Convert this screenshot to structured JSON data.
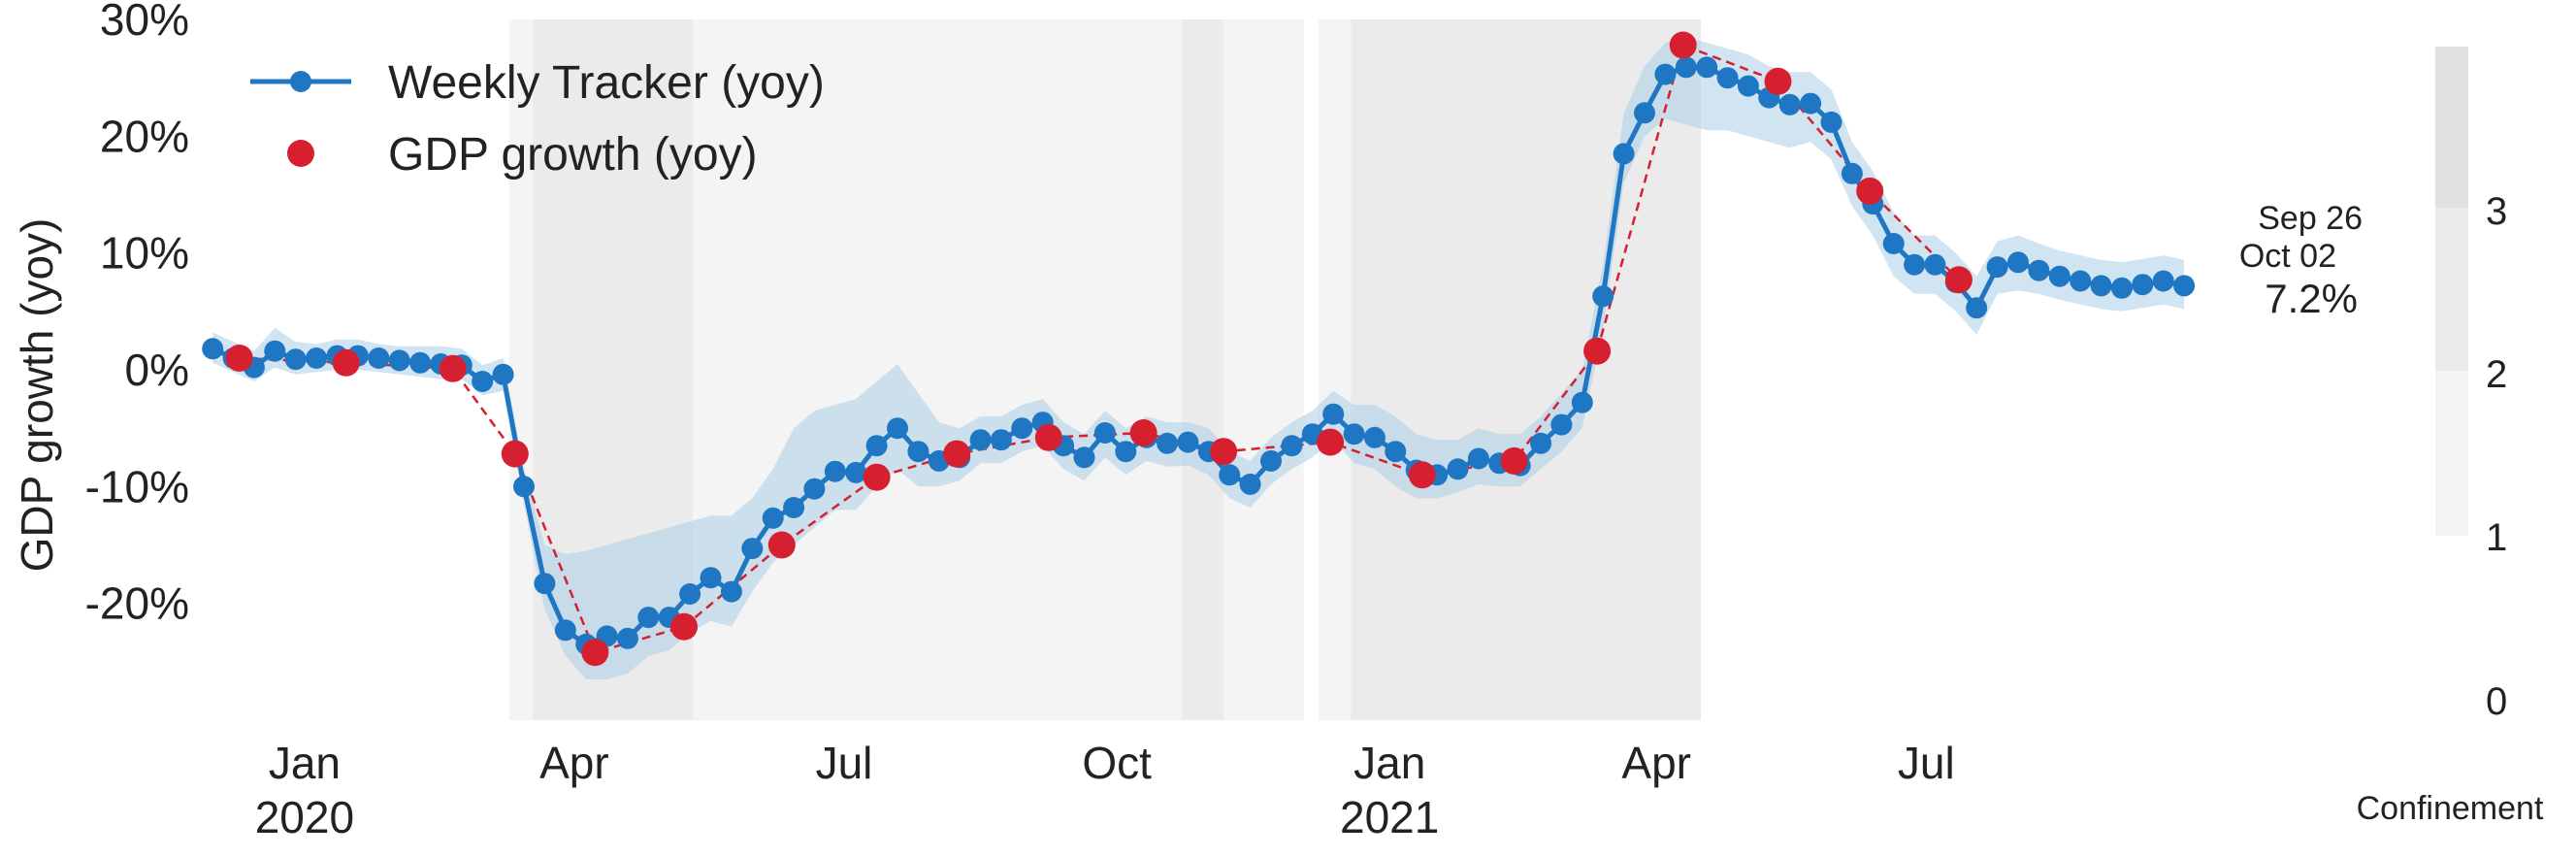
{
  "chart_data": {
    "type": "line",
    "ylabel": "GDP growth (yoy)",
    "ylim": [
      -30,
      30
    ],
    "y_ticks": [
      {
        "value": 30,
        "label": "30%"
      },
      {
        "value": 20,
        "label": "20%"
      },
      {
        "value": 10,
        "label": "10%"
      },
      {
        "value": 0,
        "label": "0%"
      },
      {
        "value": -10,
        "label": "-10%"
      },
      {
        "value": -20,
        "label": "-20%"
      }
    ],
    "xlim": [
      "2019-11-28",
      "2021-10-12"
    ],
    "x_ticks": [
      {
        "date": "2020-01-01",
        "label": "Jan",
        "year": "2020"
      },
      {
        "date": "2020-04-01",
        "label": "Apr",
        "year": ""
      },
      {
        "date": "2020-07-01",
        "label": "Jul",
        "year": ""
      },
      {
        "date": "2020-10-01",
        "label": "Oct",
        "year": ""
      },
      {
        "date": "2021-01-01",
        "label": "Jan",
        "year": "2021"
      },
      {
        "date": "2021-04-01",
        "label": "Apr",
        "year": ""
      },
      {
        "date": "2021-07-01",
        "label": "Jul",
        "year": ""
      }
    ],
    "grid": false,
    "legend_position": "top-left",
    "colors": {
      "tracker": "#1f77c4",
      "band": "#a9cde8",
      "gdp": "#d62030",
      "confinement_1": "#f4f4f4",
      "confinement_2": "#ebebeb",
      "confinement_3": "#e0e0e0"
    },
    "series": [
      {
        "name": "Weekly Tracker (yoy)",
        "style": "line-marker",
        "points": [
          {
            "x": "2019-12-01",
            "y": 1.8,
            "lo": 0.6,
            "hi": 3.2
          },
          {
            "x": "2019-12-08",
            "y": 1.0,
            "lo": -0.2,
            "hi": 2.4
          },
          {
            "x": "2019-12-15",
            "y": 0.2,
            "lo": -1.0,
            "hi": 1.6
          },
          {
            "x": "2019-12-22",
            "y": 1.6,
            "lo": 0.2,
            "hi": 3.6
          },
          {
            "x": "2019-12-29",
            "y": 0.9,
            "lo": -0.4,
            "hi": 2.4
          },
          {
            "x": "2020-01-05",
            "y": 1.0,
            "lo": -0.2,
            "hi": 2.2
          },
          {
            "x": "2020-01-12",
            "y": 1.2,
            "lo": 0.0,
            "hi": 2.6
          },
          {
            "x": "2020-01-19",
            "y": 1.2,
            "lo": 0.0,
            "hi": 2.6
          },
          {
            "x": "2020-01-26",
            "y": 1.0,
            "lo": -0.2,
            "hi": 2.2
          },
          {
            "x": "2020-02-02",
            "y": 0.8,
            "lo": -0.4,
            "hi": 2.0
          },
          {
            "x": "2020-02-09",
            "y": 0.6,
            "lo": -0.6,
            "hi": 2.0
          },
          {
            "x": "2020-02-16",
            "y": 0.5,
            "lo": -0.8,
            "hi": 2.0
          },
          {
            "x": "2020-02-23",
            "y": 0.4,
            "lo": -0.8,
            "hi": 1.8
          },
          {
            "x": "2020-03-01",
            "y": -1.0,
            "lo": -2.2,
            "hi": 0.4
          },
          {
            "x": "2020-03-08",
            "y": -0.4,
            "lo": -1.8,
            "hi": 1.0
          },
          {
            "x": "2020-03-15",
            "y": -10.0,
            "lo": -11.5,
            "hi": -8.5
          },
          {
            "x": "2020-03-22",
            "y": -18.3,
            "lo": -20.5,
            "hi": -15.0
          },
          {
            "x": "2020-03-29",
            "y": -22.3,
            "lo": -24.5,
            "hi": -15.8
          },
          {
            "x": "2020-04-05",
            "y": -23.5,
            "lo": -26.5,
            "hi": -15.5
          },
          {
            "x": "2020-04-12",
            "y": -22.8,
            "lo": -26.5,
            "hi": -15.0
          },
          {
            "x": "2020-04-19",
            "y": -23.0,
            "lo": -26.0,
            "hi": -14.5
          },
          {
            "x": "2020-04-26",
            "y": -21.2,
            "lo": -24.5,
            "hi": -14.0
          },
          {
            "x": "2020-05-03",
            "y": -21.2,
            "lo": -24.0,
            "hi": -13.5
          },
          {
            "x": "2020-05-10",
            "y": -19.2,
            "lo": -22.5,
            "hi": -13.0
          },
          {
            "x": "2020-05-17",
            "y": -17.8,
            "lo": -21.5,
            "hi": -12.5
          },
          {
            "x": "2020-05-24",
            "y": -19.0,
            "lo": -22.0,
            "hi": -12.5
          },
          {
            "x": "2020-05-31",
            "y": -15.3,
            "lo": -19.0,
            "hi": -11.0
          },
          {
            "x": "2020-06-07",
            "y": -12.7,
            "lo": -16.5,
            "hi": -8.5
          },
          {
            "x": "2020-06-14",
            "y": -11.8,
            "lo": -15.0,
            "hi": -5.0
          },
          {
            "x": "2020-06-21",
            "y": -10.2,
            "lo": -13.5,
            "hi": -3.5
          },
          {
            "x": "2020-06-28",
            "y": -8.7,
            "lo": -12.0,
            "hi": -3.0
          },
          {
            "x": "2020-07-05",
            "y": -8.8,
            "lo": -12.0,
            "hi": -2.5
          },
          {
            "x": "2020-07-12",
            "y": -6.5,
            "lo": -10.0,
            "hi": -1.0
          },
          {
            "x": "2020-07-19",
            "y": -5.0,
            "lo": -8.5,
            "hi": 0.5
          },
          {
            "x": "2020-07-26",
            "y": -7.0,
            "lo": -10.0,
            "hi": -2.0
          },
          {
            "x": "2020-08-02",
            "y": -7.8,
            "lo": -10.0,
            "hi": -4.5
          },
          {
            "x": "2020-08-09",
            "y": -7.5,
            "lo": -9.5,
            "hi": -5.0
          },
          {
            "x": "2020-08-16",
            "y": -6.0,
            "lo": -8.0,
            "hi": -4.0
          },
          {
            "x": "2020-08-23",
            "y": -6.0,
            "lo": -8.0,
            "hi": -4.0
          },
          {
            "x": "2020-08-30",
            "y": -5.0,
            "lo": -7.0,
            "hi": -3.0
          },
          {
            "x": "2020-09-06",
            "y": -4.5,
            "lo": -6.5,
            "hi": -2.5
          },
          {
            "x": "2020-09-13",
            "y": -6.5,
            "lo": -8.5,
            "hi": -4.5
          },
          {
            "x": "2020-09-20",
            "y": -7.5,
            "lo": -9.5,
            "hi": -5.5
          },
          {
            "x": "2020-09-27",
            "y": -5.4,
            "lo": -7.5,
            "hi": -3.5
          },
          {
            "x": "2020-10-04",
            "y": -7.0,
            "lo": -9.0,
            "hi": -5.0
          },
          {
            "x": "2020-10-11",
            "y": -5.8,
            "lo": -7.8,
            "hi": -4.0
          },
          {
            "x": "2020-10-18",
            "y": -6.3,
            "lo": -8.3,
            "hi": -4.5
          },
          {
            "x": "2020-10-25",
            "y": -6.2,
            "lo": -8.2,
            "hi": -4.5
          },
          {
            "x": "2020-11-01",
            "y": -7.0,
            "lo": -9.0,
            "hi": -5.0
          },
          {
            "x": "2020-11-08",
            "y": -9.0,
            "lo": -11.0,
            "hi": -7.0
          },
          {
            "x": "2020-11-15",
            "y": -9.8,
            "lo": -11.8,
            "hi": -7.8
          },
          {
            "x": "2020-11-22",
            "y": -7.8,
            "lo": -9.8,
            "hi": -5.8
          },
          {
            "x": "2020-11-29",
            "y": -6.5,
            "lo": -8.5,
            "hi": -4.5
          },
          {
            "x": "2020-12-06",
            "y": -5.5,
            "lo": -7.5,
            "hi": -3.5
          },
          {
            "x": "2020-12-13",
            "y": -3.8,
            "lo": -6.0,
            "hi": -1.8
          },
          {
            "x": "2020-12-20",
            "y": -5.5,
            "lo": -8.0,
            "hi": -3.0
          },
          {
            "x": "2020-12-27",
            "y": -5.8,
            "lo": -8.5,
            "hi": -3.0
          },
          {
            "x": "2021-01-03",
            "y": -7.0,
            "lo": -10.0,
            "hi": -4.0
          },
          {
            "x": "2021-01-10",
            "y": -8.6,
            "lo": -11.0,
            "hi": -5.5
          },
          {
            "x": "2021-01-17",
            "y": -9.0,
            "lo": -11.0,
            "hi": -6.0
          },
          {
            "x": "2021-01-24",
            "y": -8.5,
            "lo": -10.5,
            "hi": -6.0
          },
          {
            "x": "2021-01-31",
            "y": -7.6,
            "lo": -9.8,
            "hi": -5.0
          },
          {
            "x": "2021-02-07",
            "y": -8.0,
            "lo": -10.0,
            "hi": -5.5
          },
          {
            "x": "2021-02-14",
            "y": -8.2,
            "lo": -10.0,
            "hi": -5.5
          },
          {
            "x": "2021-02-21",
            "y": -6.3,
            "lo": -8.5,
            "hi": -4.0
          },
          {
            "x": "2021-02-28",
            "y": -4.7,
            "lo": -7.0,
            "hi": -2.0
          },
          {
            "x": "2021-03-07",
            "y": -2.8,
            "lo": -5.0,
            "hi": 0.0
          },
          {
            "x": "2021-03-14",
            "y": 6.3,
            "lo": 3.5,
            "hi": 9.0
          },
          {
            "x": "2021-03-21",
            "y": 18.5,
            "lo": 16.0,
            "hi": 22.0
          },
          {
            "x": "2021-03-28",
            "y": 22.0,
            "lo": 20.0,
            "hi": 26.0
          },
          {
            "x": "2021-04-04",
            "y": 25.3,
            "lo": 21.5,
            "hi": 28.0
          },
          {
            "x": "2021-04-11",
            "y": 25.9,
            "lo": 21.0,
            "hi": 28.5
          },
          {
            "x": "2021-04-18",
            "y": 25.9,
            "lo": 20.5,
            "hi": 28.0
          },
          {
            "x": "2021-04-25",
            "y": 25.0,
            "lo": 20.5,
            "hi": 27.5
          },
          {
            "x": "2021-05-02",
            "y": 24.3,
            "lo": 20.0,
            "hi": 27.0
          },
          {
            "x": "2021-05-09",
            "y": 23.3,
            "lo": 19.5,
            "hi": 26.0
          },
          {
            "x": "2021-05-16",
            "y": 22.7,
            "lo": 19.0,
            "hi": 25.5
          },
          {
            "x": "2021-05-23",
            "y": 22.8,
            "lo": 19.5,
            "hi": 25.5
          },
          {
            "x": "2021-05-30",
            "y": 21.2,
            "lo": 18.0,
            "hi": 24.0
          },
          {
            "x": "2021-06-06",
            "y": 16.8,
            "lo": 14.0,
            "hi": 19.5
          },
          {
            "x": "2021-06-13",
            "y": 14.2,
            "lo": 11.5,
            "hi": 17.0
          },
          {
            "x": "2021-06-20",
            "y": 10.8,
            "lo": 8.0,
            "hi": 13.5
          },
          {
            "x": "2021-06-27",
            "y": 9.0,
            "lo": 6.5,
            "hi": 11.5
          },
          {
            "x": "2021-07-04",
            "y": 9.0,
            "lo": 6.5,
            "hi": 11.5
          },
          {
            "x": "2021-07-11",
            "y": 7.5,
            "lo": 5.0,
            "hi": 10.0
          },
          {
            "x": "2021-07-18",
            "y": 5.3,
            "lo": 3.0,
            "hi": 8.0
          },
          {
            "x": "2021-07-25",
            "y": 8.8,
            "lo": 6.5,
            "hi": 11.0
          },
          {
            "x": "2021-08-01",
            "y": 9.2,
            "lo": 6.8,
            "hi": 11.5
          },
          {
            "x": "2021-08-08",
            "y": 8.5,
            "lo": 6.5,
            "hi": 10.8
          },
          {
            "x": "2021-08-15",
            "y": 8.0,
            "lo": 6.0,
            "hi": 10.2
          },
          {
            "x": "2021-08-22",
            "y": 7.6,
            "lo": 5.6,
            "hi": 9.8
          },
          {
            "x": "2021-08-29",
            "y": 7.2,
            "lo": 5.2,
            "hi": 9.4
          },
          {
            "x": "2021-09-05",
            "y": 7.0,
            "lo": 5.0,
            "hi": 9.2
          },
          {
            "x": "2021-09-12",
            "y": 7.3,
            "lo": 5.3,
            "hi": 9.5
          },
          {
            "x": "2021-09-19",
            "y": 7.6,
            "lo": 5.6,
            "hi": 9.8
          },
          {
            "x": "2021-09-26",
            "y": 7.2,
            "lo": 5.2,
            "hi": 9.4
          }
        ]
      },
      {
        "name": "GDP growth (yoy)",
        "style": "marker-dashed",
        "points": [
          {
            "x": "2019-12-10",
            "y": 1.0
          },
          {
            "x": "2020-01-15",
            "y": 0.6
          },
          {
            "x": "2020-02-20",
            "y": 0.1
          },
          {
            "x": "2020-03-12",
            "y": -7.2
          },
          {
            "x": "2020-04-08",
            "y": -24.2
          },
          {
            "x": "2020-05-08",
            "y": -22.0
          },
          {
            "x": "2020-06-10",
            "y": -15.0
          },
          {
            "x": "2020-07-12",
            "y": -9.2
          },
          {
            "x": "2020-08-08",
            "y": -7.2
          },
          {
            "x": "2020-09-08",
            "y": -5.8
          },
          {
            "x": "2020-10-10",
            "y": -5.4
          },
          {
            "x": "2020-11-06",
            "y": -7.0
          },
          {
            "x": "2020-12-12",
            "y": -6.2
          },
          {
            "x": "2021-01-12",
            "y": -9.0
          },
          {
            "x": "2021-02-12",
            "y": -7.8
          },
          {
            "x": "2021-03-12",
            "y": 1.6
          },
          {
            "x": "2021-04-10",
            "y": 27.8
          },
          {
            "x": "2021-05-12",
            "y": 24.7
          },
          {
            "x": "2021-06-12",
            "y": 15.3
          },
          {
            "x": "2021-07-12",
            "y": 7.7
          }
        ]
      }
    ],
    "confinement_periods": [
      {
        "start": "2020-03-10",
        "end": "2020-03-18",
        "level": 1
      },
      {
        "start": "2020-03-18",
        "end": "2020-05-11",
        "level": 2
      },
      {
        "start": "2020-05-11",
        "end": "2020-10-23",
        "level": 1
      },
      {
        "start": "2020-10-23",
        "end": "2020-11-06",
        "level": 2
      },
      {
        "start": "2020-11-06",
        "end": "2020-12-03",
        "level": 1
      },
      {
        "start": "2020-12-08",
        "end": "2020-12-19",
        "level": 1
      },
      {
        "start": "2020-12-19",
        "end": "2021-04-16",
        "level": 2
      }
    ],
    "annotations": {
      "week_label": "Sep 26",
      "date_label": "Oct 02",
      "value_label": "7.2%",
      "value": 7.2
    },
    "colorbar": {
      "title": "Confinement",
      "ticks": [
        "0",
        "1",
        "2",
        "3"
      ]
    }
  }
}
